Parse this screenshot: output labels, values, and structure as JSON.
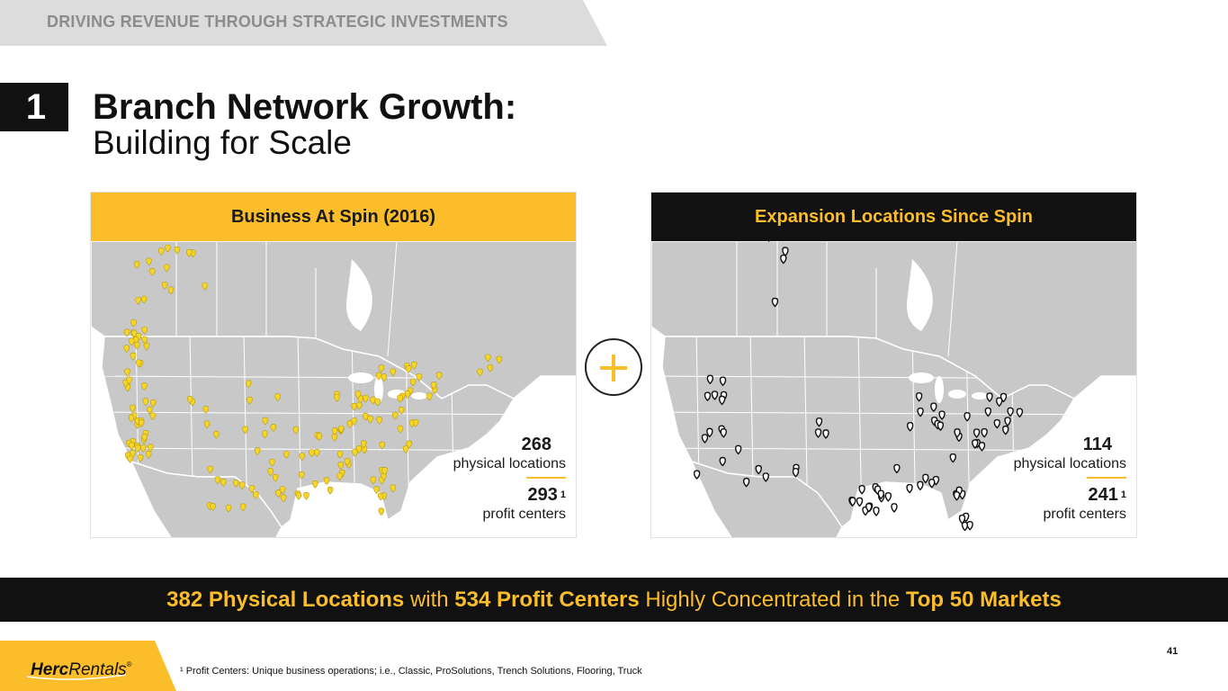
{
  "header": {
    "section_label": "DRIVING REVENUE THROUGH STRATEGIC INVESTMENTS"
  },
  "title": {
    "number": "1",
    "line1": "Branch Network Growth:",
    "line2": "Building for Scale"
  },
  "panels": [
    {
      "header": "Business At Spin (2016)",
      "physical_count": "268",
      "physical_label": "physical locations",
      "profit_count": "293",
      "profit_sup": "1",
      "profit_label": "profit centers",
      "marker_style": "yellow-dot"
    },
    {
      "header": "Expansion Locations Since Spin",
      "physical_count": "114",
      "physical_label": "physical locations",
      "profit_count": "241",
      "profit_sup": "1",
      "profit_label": "profit centers",
      "marker_style": "black-pin"
    }
  ],
  "banner": {
    "part1": "382 Physical Locations",
    "part2": " with ",
    "part3": "534 Profit Centers",
    "part4": " Highly Concentrated in the ",
    "part5": "Top 50 Markets"
  },
  "footer": {
    "logo_herc": "Herc",
    "logo_rentals": "Rentals",
    "logo_reg": "®",
    "page_number": "41",
    "footnote": "¹ Profit Centers: Unique business operations; i.e., Classic, ProSolutions, Trench Solutions, Flooring, Truck"
  },
  "colors": {
    "accent_yellow": "#fbbd2a",
    "dark": "#111111",
    "map_land": "#c8c8c8",
    "map_border": "#ffffff",
    "top_bar": "#dcdcdc"
  }
}
